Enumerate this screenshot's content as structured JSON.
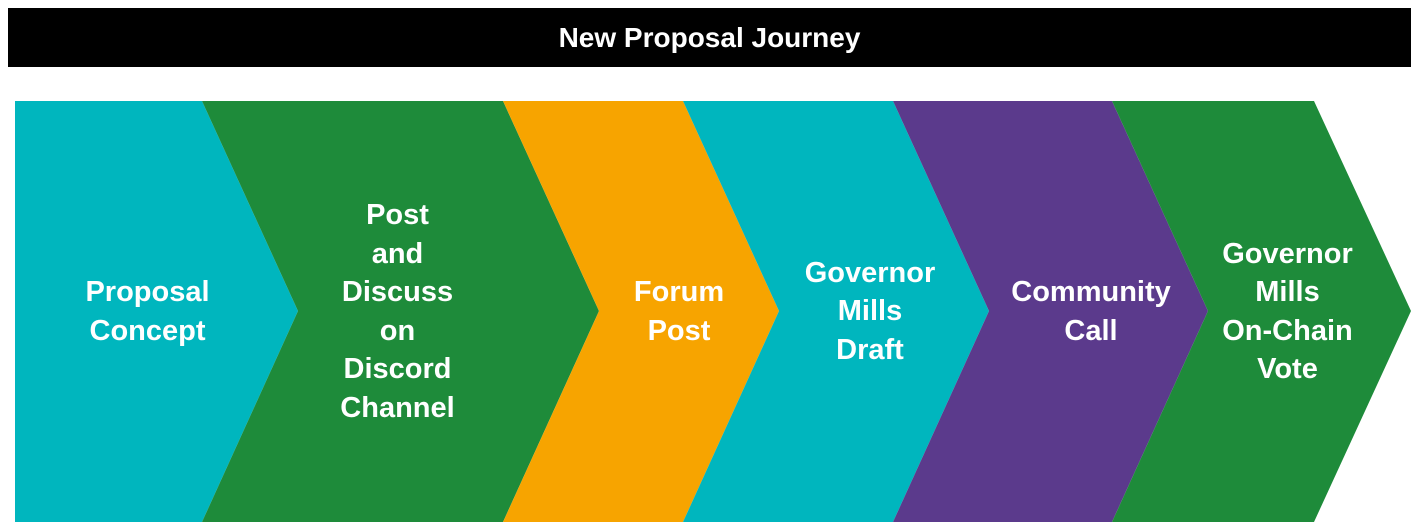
{
  "title": "New Proposal Journey",
  "colors": {
    "teal": "#00B6BE",
    "green": "#1E8B3A",
    "orange": "#F7A400",
    "purple": "#5B3A8C"
  },
  "stages": [
    {
      "label": "Proposal\nConcept",
      "color": "#00B6BE"
    },
    {
      "label": "Post\nand\nDiscuss\non\nDiscord\nChannel",
      "color": "#1E8B3A"
    },
    {
      "label": "Forum\nPost",
      "color": "#F7A400"
    },
    {
      "label": "Governor\nMills\nDraft",
      "color": "#00B6BE"
    },
    {
      "label": "Community\nCall",
      "color": "#5B3A8C"
    },
    {
      "label": "Governor\nMills\nOn-Chain\nVote",
      "color": "#1E8B3A"
    }
  ]
}
